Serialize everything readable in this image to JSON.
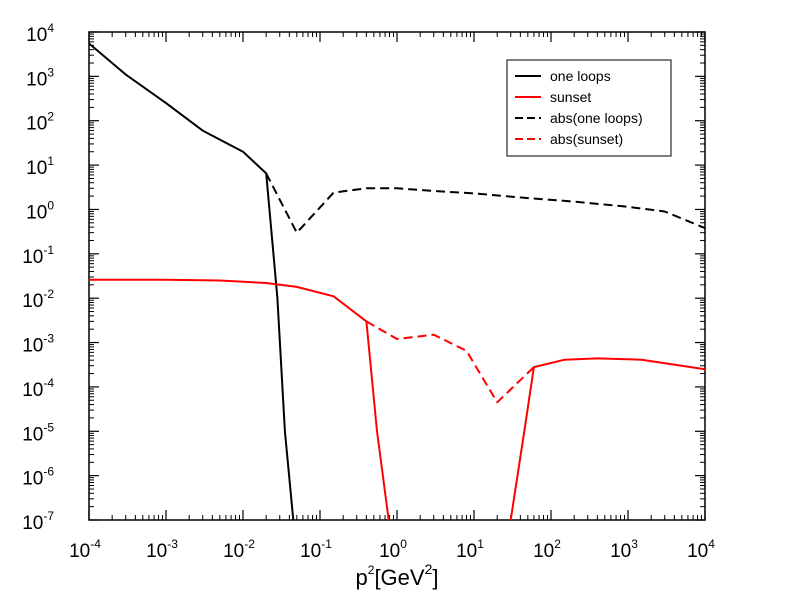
{
  "chart_data": {
    "type": "line",
    "title": "",
    "x_scale": "log",
    "y_scale": "log",
    "xlim": [
      0.0001,
      10000
    ],
    "ylim": [
      1e-07,
      10000
    ],
    "xlabel": {
      "base": "p",
      "sup": "2",
      "unit_open": "[GeV",
      "unit_sup": "2",
      "unit_close": "]"
    },
    "ylabel": "",
    "x_ticks": [
      {
        "value": 0.0001,
        "base": "10",
        "exp": "-4"
      },
      {
        "value": 0.001,
        "base": "10",
        "exp": "-3"
      },
      {
        "value": 0.01,
        "base": "10",
        "exp": "-2"
      },
      {
        "value": 0.1,
        "base": "10",
        "exp": "-1"
      },
      {
        "value": 1,
        "base": "10",
        "exp": "0"
      },
      {
        "value": 10,
        "base": "10",
        "exp": "1"
      },
      {
        "value": 100,
        "base": "10",
        "exp": "2"
      },
      {
        "value": 1000,
        "base": "10",
        "exp": "3"
      },
      {
        "value": 10000,
        "base": "10",
        "exp": "4"
      }
    ],
    "y_ticks": [
      {
        "value": 1e-07,
        "base": "10",
        "exp": "-7"
      },
      {
        "value": 1e-06,
        "base": "10",
        "exp": "-6"
      },
      {
        "value": 1e-05,
        "base": "10",
        "exp": "-5"
      },
      {
        "value": 0.0001,
        "base": "10",
        "exp": "-4"
      },
      {
        "value": 0.001,
        "base": "10",
        "exp": "-3"
      },
      {
        "value": 0.01,
        "base": "10",
        "exp": "-2"
      },
      {
        "value": 0.1,
        "base": "10",
        "exp": "-1"
      },
      {
        "value": 1,
        "base": "10",
        "exp": "0"
      },
      {
        "value": 10,
        "base": "10",
        "exp": "1"
      },
      {
        "value": 100,
        "base": "10",
        "exp": "2"
      },
      {
        "value": 1000,
        "base": "10",
        "exp": "3"
      },
      {
        "value": 10000,
        "base": "10",
        "exp": "4"
      }
    ],
    "grid": false,
    "legend_position": "top-right",
    "series": [
      {
        "name": "one loops",
        "color": "#000000",
        "dash": "solid",
        "points": [
          [
            0.0001,
            5500
          ],
          [
            0.0003,
            1100
          ],
          [
            0.001,
            250
          ],
          [
            0.003,
            60
          ],
          [
            0.01,
            20
          ],
          [
            0.02,
            6.5
          ],
          [
            0.028,
            0.01
          ],
          [
            0.035,
            1e-05
          ],
          [
            0.045,
            1e-07
          ]
        ]
      },
      {
        "name": "sunset",
        "color": "#ff0000",
        "dash": "solid",
        "points": [
          [
            0.0001,
            0.026
          ],
          [
            0.001,
            0.026
          ],
          [
            0.005,
            0.025
          ],
          [
            0.02,
            0.022
          ],
          [
            0.05,
            0.018
          ],
          [
            0.15,
            0.011
          ],
          [
            0.4,
            0.003
          ],
          [
            0.55,
            1e-05
          ],
          [
            0.78,
            1e-07
          ]
        ]
      },
      {
        "name": "sunset",
        "color": "#ff0000",
        "dash": "solid",
        "points": [
          [
            30,
            1e-07
          ],
          [
            45,
            1e-05
          ],
          [
            60,
            0.00028
          ],
          [
            150,
            0.00041
          ],
          [
            400,
            0.00044
          ],
          [
            1500,
            0.00041
          ],
          [
            10000,
            0.00025
          ]
        ]
      },
      {
        "name": "abs(one loops)",
        "color": "#000000",
        "dash": "dashed",
        "points": [
          [
            0.02,
            6.5
          ],
          [
            0.05,
            0.3
          ],
          [
            0.15,
            2.4
          ],
          [
            0.4,
            3
          ],
          [
            1,
            3
          ],
          [
            3,
            2.6
          ],
          [
            10,
            2.3
          ],
          [
            50,
            1.8
          ],
          [
            200,
            1.5
          ],
          [
            1000,
            1.15
          ],
          [
            3000,
            0.9
          ],
          [
            10000,
            0.38
          ]
        ]
      },
      {
        "name": "abs(sunset)",
        "color": "#ff0000",
        "dash": "dashed",
        "points": [
          [
            0.4,
            0.003
          ],
          [
            1,
            0.0012
          ],
          [
            3,
            0.0015
          ],
          [
            8,
            0.00065
          ],
          [
            20,
            4.5e-05
          ],
          [
            60,
            0.00028
          ]
        ]
      }
    ],
    "legend": [
      {
        "label": "one loops",
        "color": "#000000",
        "dash": "solid"
      },
      {
        "label": "sunset",
        "color": "#ff0000",
        "dash": "solid"
      },
      {
        "label": "abs(one loops)",
        "color": "#000000",
        "dash": "dashed"
      },
      {
        "label": "abs(sunset)",
        "color": "#ff0000",
        "dash": "dashed"
      }
    ]
  }
}
